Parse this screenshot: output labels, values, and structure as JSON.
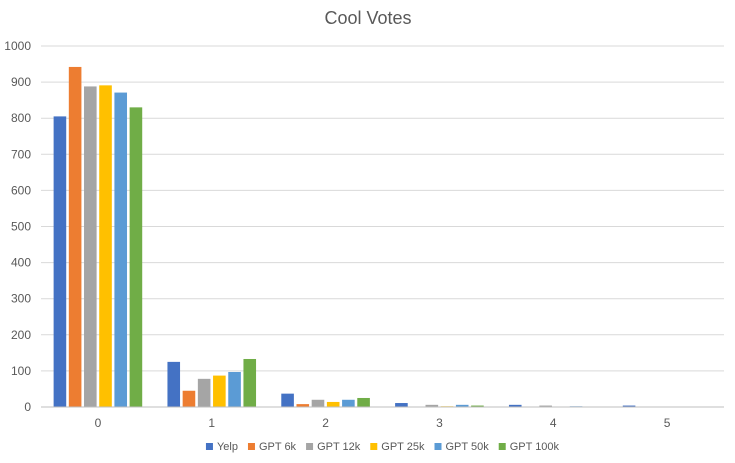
{
  "chart_data": {
    "type": "bar",
    "title": "Cool Votes",
    "xlabel": "",
    "ylabel": "",
    "categories": [
      "0",
      "1",
      "2",
      "3",
      "4",
      "5"
    ],
    "ylim": [
      0,
      1000
    ],
    "yticks": [
      0,
      100,
      200,
      300,
      400,
      500,
      600,
      700,
      800,
      900,
      1000
    ],
    "grid": true,
    "legend": "bottom",
    "series": [
      {
        "name": "Yelp",
        "color": "#4472c4",
        "values": [
          805,
          125,
          37,
          11,
          6,
          4
        ]
      },
      {
        "name": "GPT 6k",
        "color": "#ed7d31",
        "values": [
          942,
          45,
          8,
          1,
          1,
          0
        ]
      },
      {
        "name": "GPT 12k",
        "color": "#a5a5a5",
        "values": [
          888,
          78,
          20,
          6,
          4,
          1
        ]
      },
      {
        "name": "GPT 25k",
        "color": "#ffc000",
        "values": [
          891,
          87,
          14,
          2,
          1,
          0
        ]
      },
      {
        "name": "GPT 50k",
        "color": "#5b9bd5",
        "values": [
          871,
          97,
          20,
          6,
          2,
          1
        ]
      },
      {
        "name": "GPT 100k",
        "color": "#70ad47",
        "values": [
          830,
          133,
          25,
          4,
          1,
          0
        ]
      }
    ]
  }
}
